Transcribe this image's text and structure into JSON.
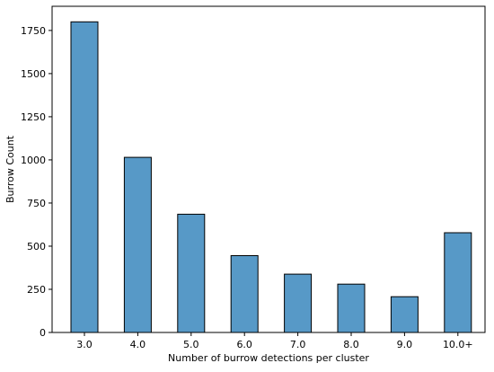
{
  "chart_data": {
    "type": "bar",
    "title": "",
    "xlabel": "Number of burrow detections per cluster",
    "ylabel": "Burrow Count",
    "categories": [
      "3.0",
      "4.0",
      "5.0",
      "6.0",
      "7.0",
      "8.0",
      "9.0",
      "10.0+"
    ],
    "values": [
      1800,
      1015,
      685,
      445,
      338,
      280,
      207,
      578
    ],
    "ylim": [
      0,
      1890
    ],
    "yticks": [
      0,
      250,
      500,
      750,
      1000,
      1250,
      1500,
      1750
    ],
    "grid": false,
    "legend": "none",
    "bar_color": "#5799c7",
    "edge_color": "#000000"
  }
}
